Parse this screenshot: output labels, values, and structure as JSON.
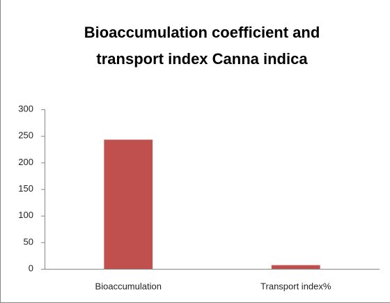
{
  "chart_data": {
    "type": "bar",
    "title": "Bioaccumulation coefficient and transport index Canna indica",
    "categories": [
      "Bioaccumulation",
      "Transport index%"
    ],
    "values": [
      243,
      7
    ],
    "color": "#c0504d",
    "ylim": [
      0,
      300
    ],
    "yticks": [
      0,
      50,
      100,
      150,
      200,
      250,
      300
    ],
    "grid": false
  }
}
